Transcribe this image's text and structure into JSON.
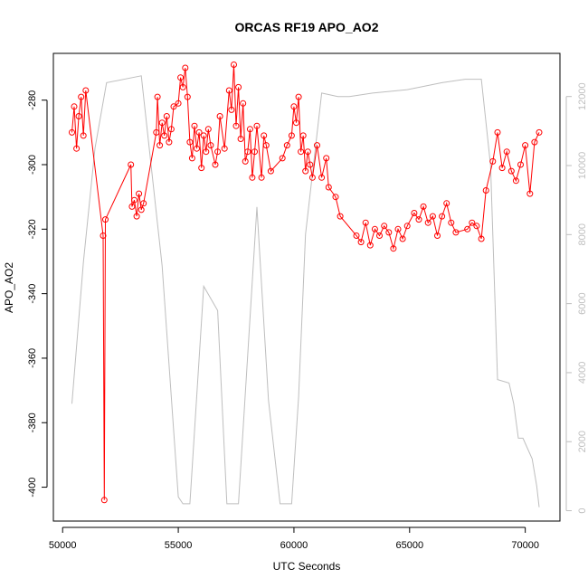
{
  "chart_data": {
    "type": "scatter",
    "title": "ORCAS RF19 APO_AO2",
    "xlabel": "UTC Seconds",
    "ylabel": "APO_AO2",
    "xlim": [
      49600,
      71500
    ],
    "ylim": [
      -410.5,
      -265.5
    ],
    "y2lim": [
      -300,
      13250
    ],
    "xticks": [
      50000,
      55000,
      60000,
      65000,
      70000
    ],
    "yticks": [
      -400,
      -380,
      -360,
      -340,
      -320,
      -300,
      -280
    ],
    "y2ticks": [
      0,
      2000,
      4000,
      6000,
      8000,
      10000,
      12000
    ],
    "grid": false,
    "legend": "none",
    "colors": {
      "series": "#ff0000",
      "secondary": "#bebebe",
      "axis": "#000000"
    },
    "series": [
      {
        "axis": "left",
        "style": "points+line",
        "x": [
          50400,
          50500,
          50600,
          50700,
          50800,
          50900,
          51000,
          51750,
          51800,
          51850,
          52950,
          53000,
          53100,
          53200,
          53300,
          53400,
          53500,
          54050,
          54100,
          54200,
          54300,
          54400,
          54500,
          54600,
          54700,
          54800,
          55000,
          55100,
          55200,
          55300,
          55400,
          55500,
          55600,
          55700,
          55800,
          55900,
          56000,
          56100,
          56200,
          56300,
          56400,
          56600,
          56700,
          56800,
          57000,
          57200,
          57300,
          57400,
          57500,
          57600,
          57700,
          57800,
          57900,
          58000,
          58100,
          58200,
          58300,
          58400,
          58600,
          58700,
          58800,
          59000,
          59500,
          59700,
          59900,
          60000,
          60100,
          60200,
          60300,
          60400,
          60500,
          60600,
          60700,
          60800,
          61000,
          61200,
          61400,
          61500,
          61800,
          62000,
          62700,
          62900,
          63100,
          63300,
          63500,
          63700,
          63900,
          64100,
          64300,
          64500,
          64700,
          64900,
          65200,
          65400,
          65600,
          65800,
          66000,
          66200,
          66400,
          66600,
          66800,
          67000,
          67500,
          67700,
          67900,
          68100,
          68300,
          68600,
          68800,
          69000,
          69200,
          69400,
          69600,
          69800,
          70000,
          70200,
          70400,
          70600
        ],
        "y": [
          -290,
          -282,
          -295,
          -285,
          -279,
          -291,
          -277,
          -322,
          -404,
          -317,
          -300,
          -313,
          -311,
          -316,
          -309,
          -314,
          -312,
          -290,
          -279,
          -294,
          -287,
          -291,
          -285,
          -293,
          -289,
          -282,
          -281,
          -273,
          -276,
          -270,
          -279,
          -293,
          -298,
          -288,
          -295,
          -290,
          -301,
          -291,
          -296,
          -289,
          -294,
          -300,
          -296,
          -285,
          -295,
          -277,
          -283,
          -269,
          -288,
          -276,
          -292,
          -281,
          -299,
          -296,
          -289,
          -304,
          -296,
          -288,
          -304,
          -291,
          -294,
          -302,
          -298,
          -294,
          -291,
          -282,
          -287,
          -279,
          -296,
          -291,
          -302,
          -296,
          -300,
          -304,
          -294,
          -304,
          -298,
          -307,
          -310,
          -316,
          -322,
          -324,
          -318,
          -325,
          -320,
          -322,
          -319,
          -321,
          -326,
          -320,
          -323,
          -319,
          -315,
          -317,
          -313,
          -318,
          -316,
          -322,
          -316,
          -312,
          -318,
          -321,
          -320,
          -318,
          -319,
          -323,
          -308,
          -299,
          -290,
          -301,
          -296,
          -302,
          -305,
          -300,
          -294,
          -309,
          -293,
          -290
        ]
      },
      {
        "axis": "right",
        "style": "line",
        "x": [
          50400,
          50900,
          51400,
          51900,
          53400,
          54300,
          55000,
          55200,
          55500,
          56100,
          56700,
          57100,
          57600,
          58400,
          58900,
          59400,
          59900,
          60200,
          60500,
          61200,
          61900,
          62400,
          63400,
          64900,
          66400,
          67400,
          68100,
          68500,
          68800,
          69300,
          69500,
          69700,
          69900,
          70300,
          70500,
          70600
        ],
        "y": [
          3100,
          7200,
          10500,
          12400,
          12600,
          7100,
          400,
          200,
          200,
          6500,
          5800,
          200,
          200,
          8800,
          3200,
          200,
          200,
          3300,
          8000,
          12100,
          12000,
          12000,
          12100,
          12200,
          12400,
          12500,
          12500,
          10000,
          3800,
          3700,
          3100,
          2100,
          2100,
          1500,
          700,
          100
        ]
      }
    ]
  }
}
